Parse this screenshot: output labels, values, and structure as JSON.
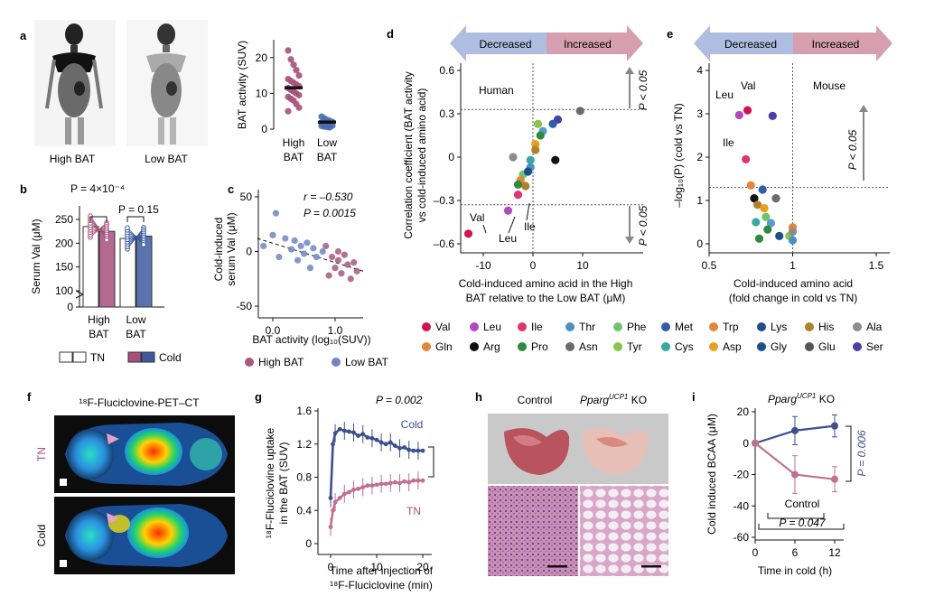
{
  "panels": {
    "a": {
      "letter": "a",
      "images": [
        "High BAT",
        "Low BAT"
      ],
      "chart": {
        "type": "scatter",
        "ylabel": "BAT activity (SUV)",
        "yticks": [
          0,
          10,
          20
        ],
        "ylim": [
          0,
          25
        ],
        "categories": [
          "High BAT",
          "Low BAT"
        ],
        "cat_line1": [
          "High",
          "Low"
        ],
        "cat_line2": [
          "BAT",
          "BAT"
        ],
        "colors": [
          "#a7507c",
          "#4a6bb0"
        ],
        "means": [
          11.5,
          1.9
        ],
        "points": [
          [
            22,
            19.5,
            18,
            16.5,
            15,
            14,
            13.5,
            13,
            12.5,
            12,
            11.5,
            11,
            10.5,
            10,
            9.5,
            9,
            8.5,
            8,
            7,
            6,
            5
          ],
          [
            3.5,
            3,
            2.6,
            2.3,
            2,
            1.8,
            1.6,
            1.4,
            1.2,
            1,
            0.9,
            0.7,
            0.6,
            0.5
          ]
        ]
      }
    },
    "b": {
      "letter": "b",
      "type": "bar",
      "ylabel": "Serum Val (μM)",
      "yticks": [
        0,
        100,
        150,
        200,
        250
      ],
      "groups": [
        "High BAT",
        "Low BAT"
      ],
      "group_line1": [
        "High",
        "Low"
      ],
      "group_line2": [
        "BAT",
        "BAT"
      ],
      "series": [
        "TN",
        "Cold"
      ],
      "values": [
        [
          235,
          225
        ],
        [
          210,
          215
        ]
      ],
      "pvalues": [
        "P = 4×10⁻⁴",
        "P = 0.15"
      ],
      "legend": [
        "TN",
        "Cold"
      ]
    },
    "c": {
      "letter": "c",
      "type": "scatter",
      "ylabel_line1": "Cold-induced",
      "ylabel_line2": "serum Val (μM)",
      "xlabel": "BAT activity (log₁₀(SUV))",
      "xticks": [
        "0.0",
        "1.0"
      ],
      "yticks": [
        50,
        0,
        -50
      ],
      "r_text": "r = –0.530",
      "p_text": "P = 0.0015",
      "legend": [
        "High BAT",
        "Low BAT"
      ],
      "blue_points": [
        [
          0.05,
          35
        ],
        [
          -0.15,
          5
        ],
        [
          0.0,
          15
        ],
        [
          0.1,
          -5
        ],
        [
          0.2,
          12
        ],
        [
          0.3,
          2
        ],
        [
          0.35,
          10
        ],
        [
          0.4,
          -8
        ],
        [
          0.45,
          5
        ],
        [
          0.5,
          -2
        ],
        [
          0.55,
          8
        ],
        [
          0.6,
          -15
        ],
        [
          0.65,
          3
        ],
        [
          0.7,
          -5
        ],
        [
          0.8,
          0
        ]
      ],
      "pink_points": [
        [
          0.85,
          5
        ],
        [
          0.95,
          -5
        ],
        [
          1.0,
          -15
        ],
        [
          1.05,
          -8
        ],
        [
          1.1,
          -20
        ],
        [
          1.15,
          -3
        ],
        [
          1.2,
          -12
        ],
        [
          1.25,
          -25
        ],
        [
          1.3,
          -10
        ],
        [
          1.35,
          -18
        ],
        [
          0.9,
          -22
        ],
        [
          1.05,
          0
        ]
      ]
    },
    "d": {
      "letter": "d",
      "type": "scatter",
      "arrow_left": "Decreased",
      "arrow_right": "Increased",
      "ylabel_line1": "Correlation coefficient (BAT activity",
      "ylabel_line2": "vs cold-induced amino acid)",
      "xlabel_line1": "Cold-induced amino acid in the High",
      "xlabel_line2": "BAT relative to the Low BAT (μM)",
      "xticks": [
        -10,
        0,
        10
      ],
      "yticks": [
        "0.6",
        "0.3",
        "0",
        "–0.3",
        "–0.6"
      ],
      "cohort": "Human",
      "pnote": "P < 0.05",
      "point_labels": [
        "Val",
        "Leu",
        "Ile"
      ],
      "points": [
        {
          "x": -13,
          "y": -0.53,
          "c": "#d3134f"
        },
        {
          "x": -5,
          "y": -0.37,
          "c": "#b14ac0"
        },
        {
          "x": -3,
          "y": -0.26,
          "c": "#e0356b"
        },
        {
          "x": 9.5,
          "y": 0.32,
          "c": "#6b6b6b"
        },
        {
          "x": 5,
          "y": 0.26,
          "c": "#4a40a8"
        },
        {
          "x": 4,
          "y": 0.23,
          "c": "#2e5fa8"
        },
        {
          "x": 1,
          "y": 0.23,
          "c": "#8bc44a"
        },
        {
          "x": 2,
          "y": 0.18,
          "c": "#5b9bd5"
        },
        {
          "x": 1.5,
          "y": 0.15,
          "c": "#2e8b3e"
        },
        {
          "x": 0.5,
          "y": 0.09,
          "c": "#e6a020"
        },
        {
          "x": 0.5,
          "y": 0.05,
          "c": "#b1812a"
        },
        {
          "x": 4.5,
          "y": -0.02,
          "c": "#111111"
        },
        {
          "x": -4,
          "y": 0.0,
          "c": "#8c8c8c"
        },
        {
          "x": -0.5,
          "y": -0.02,
          "c": "#3aa8a0"
        },
        {
          "x": -0.5,
          "y": -0.07,
          "c": "#4c8fc4"
        },
        {
          "x": -2,
          "y": -0.12,
          "c": "#6fc46a"
        },
        {
          "x": -2.5,
          "y": -0.16,
          "c": "#e6843a"
        },
        {
          "x": -1.5,
          "y": -0.2,
          "c": "#b1812a"
        },
        {
          "x": -1,
          "y": -0.1,
          "c": "#1b4f8a"
        },
        {
          "x": -3,
          "y": -0.19,
          "c": "#2e8b3e"
        }
      ]
    },
    "e": {
      "letter": "e",
      "type": "scatter",
      "arrow_left": "Decreased",
      "arrow_right": "Increased",
      "ylabel": "–log₁₀(P) (cold vs TN)",
      "xlabel_line1": "Cold-induced amino acid",
      "xlabel_line2": "(fold change in cold vs TN)",
      "xticks": [
        "0.5",
        "1",
        "1.5"
      ],
      "yticks": [
        0,
        1,
        2,
        3,
        4
      ],
      "cohort": "Mouse",
      "pnote": "P < 0.05",
      "point_labels": [
        "Leu",
        "Val",
        "Ile"
      ],
      "points": [
        {
          "x": 0.68,
          "y": 2.97,
          "c": "#b14ac0"
        },
        {
          "x": 0.73,
          "y": 3.08,
          "c": "#d3134f"
        },
        {
          "x": 0.72,
          "y": 1.95,
          "c": "#e0356b"
        },
        {
          "x": 0.88,
          "y": 2.95,
          "c": "#4a40a8"
        },
        {
          "x": 0.75,
          "y": 1.35,
          "c": "#e6843a"
        },
        {
          "x": 0.82,
          "y": 1.25,
          "c": "#2e5fa8"
        },
        {
          "x": 0.77,
          "y": 1.05,
          "c": "#111111"
        },
        {
          "x": 0.9,
          "y": 1.05,
          "c": "#6b6b6b"
        },
        {
          "x": 0.79,
          "y": 0.9,
          "c": "#b1812a"
        },
        {
          "x": 0.83,
          "y": 0.82,
          "c": "#e6a020"
        },
        {
          "x": 0.84,
          "y": 0.62,
          "c": "#6fc46a"
        },
        {
          "x": 0.78,
          "y": 0.5,
          "c": "#3aa8a0"
        },
        {
          "x": 0.87,
          "y": 0.48,
          "c": "#5b9bd5"
        },
        {
          "x": 0.85,
          "y": 0.33,
          "c": "#2e8b3e"
        },
        {
          "x": 0.92,
          "y": 0.18,
          "c": "#1b4f8a"
        },
        {
          "x": 0.98,
          "y": 0.18,
          "c": "#8bc44a"
        },
        {
          "x": 1.0,
          "y": 0.38,
          "c": "#e6843a"
        },
        {
          "x": 1.0,
          "y": 0.28,
          "c": "#8c8c8c"
        },
        {
          "x": 1.0,
          "y": 0.08,
          "c": "#4c8fc4"
        },
        {
          "x": 0.8,
          "y": 0.12,
          "c": "#2e8b3e"
        }
      ]
    },
    "legend_aa": [
      {
        "label": "Val",
        "color": "#d3134f"
      },
      {
        "label": "Leu",
        "color": "#b14ac0"
      },
      {
        "label": "Ile",
        "color": "#e0356b"
      },
      {
        "label": "Thr",
        "color": "#4c8fc4"
      },
      {
        "label": "Phe",
        "color": "#6fc46a"
      },
      {
        "label": "Met",
        "color": "#2e5fa8"
      },
      {
        "label": "Trp",
        "color": "#e6843a"
      },
      {
        "label": "Lys",
        "color": "#1b4f8a"
      },
      {
        "label": "His",
        "color": "#b1812a"
      },
      {
        "label": "Ala",
        "color": "#8c8c8c"
      },
      {
        "label": "Gln",
        "color": "#e6843a"
      },
      {
        "label": "Arg",
        "color": "#111111"
      },
      {
        "label": "Pro",
        "color": "#2e8b3e"
      },
      {
        "label": "Asn",
        "color": "#6b6b6b"
      },
      {
        "label": "Tyr",
        "color": "#8bc44a"
      },
      {
        "label": "Cys",
        "color": "#3aa8a0"
      },
      {
        "label": "Asp",
        "color": "#e6a020"
      },
      {
        "label": "Gly",
        "color": "#1b4f8a"
      },
      {
        "label": "Glu",
        "color": "#555555"
      },
      {
        "label": "Ser",
        "color": "#4a40a8"
      }
    ],
    "f": {
      "letter": "f",
      "title": "¹⁸F-Fluciclovine-PET–CT",
      "rows": [
        "TN",
        "Cold"
      ]
    },
    "g": {
      "letter": "g",
      "type": "line",
      "pvalue": "P = 0.002",
      "ylabel_line1": "¹⁸F-Fluciclovine uptake",
      "ylabel_line2": "in the BAT (SUV)",
      "xlabel_line1": "Time after injection of",
      "xlabel_line2": "¹⁸F-Fluciclovine (min)",
      "xticks": [
        0,
        10,
        20
      ],
      "yticks": [
        "0",
        "0.4",
        "0.8",
        "1.2",
        "1.6"
      ],
      "series": [
        {
          "name": "Cold",
          "color": "#3d4f8c",
          "x": [
            0,
            0.5,
            1,
            2,
            3,
            4,
            5,
            6,
            7,
            8,
            9,
            10,
            11,
            12,
            13,
            14,
            15,
            16,
            17,
            18,
            19,
            20
          ],
          "y": [
            0.55,
            1.2,
            1.33,
            1.38,
            1.36,
            1.35,
            1.34,
            1.3,
            1.32,
            1.28,
            1.27,
            1.25,
            1.22,
            1.2,
            1.22,
            1.18,
            1.15,
            1.16,
            1.13,
            1.12,
            1.12,
            1.12
          ]
        },
        {
          "name": "TN",
          "color": "#c07090",
          "x": [
            0,
            0.5,
            1,
            2,
            3,
            4,
            5,
            6,
            7,
            8,
            9,
            10,
            11,
            12,
            13,
            14,
            15,
            16,
            17,
            18,
            19,
            20
          ],
          "y": [
            0.2,
            0.4,
            0.5,
            0.55,
            0.6,
            0.62,
            0.65,
            0.66,
            0.68,
            0.7,
            0.7,
            0.71,
            0.72,
            0.72,
            0.73,
            0.74,
            0.73,
            0.75,
            0.74,
            0.76,
            0.76,
            0.76
          ]
        }
      ]
    },
    "h": {
      "letter": "h",
      "labels": [
        "Control",
        "Pparg",
        "UCP1",
        " KO"
      ]
    },
    "i": {
      "letter": "i",
      "type": "line",
      "title_main": "Pparg",
      "title_sup": "UCP1",
      "title_end": " KO",
      "ylabel": "Cold induced BCAA (μM)",
      "xlabel": "Time in cold (h)",
      "xticks": [
        0,
        6,
        12
      ],
      "yticks": [
        20,
        0,
        -20,
        -40,
        -60
      ],
      "p_right": "P = 0.006",
      "p_bottom": "P = 0.047",
      "control_label": "Control",
      "series": [
        {
          "name": "KO",
          "color": "#3d4f8c",
          "x": [
            0,
            6,
            12
          ],
          "y": [
            0,
            8,
            11
          ],
          "err": [
            0,
            9,
            7
          ]
        },
        {
          "name": "Control",
          "color": "#c07090",
          "x": [
            0,
            6,
            12
          ],
          "y": [
            0,
            -20,
            -23
          ],
          "err": [
            0,
            12,
            8
          ]
        }
      ]
    }
  }
}
